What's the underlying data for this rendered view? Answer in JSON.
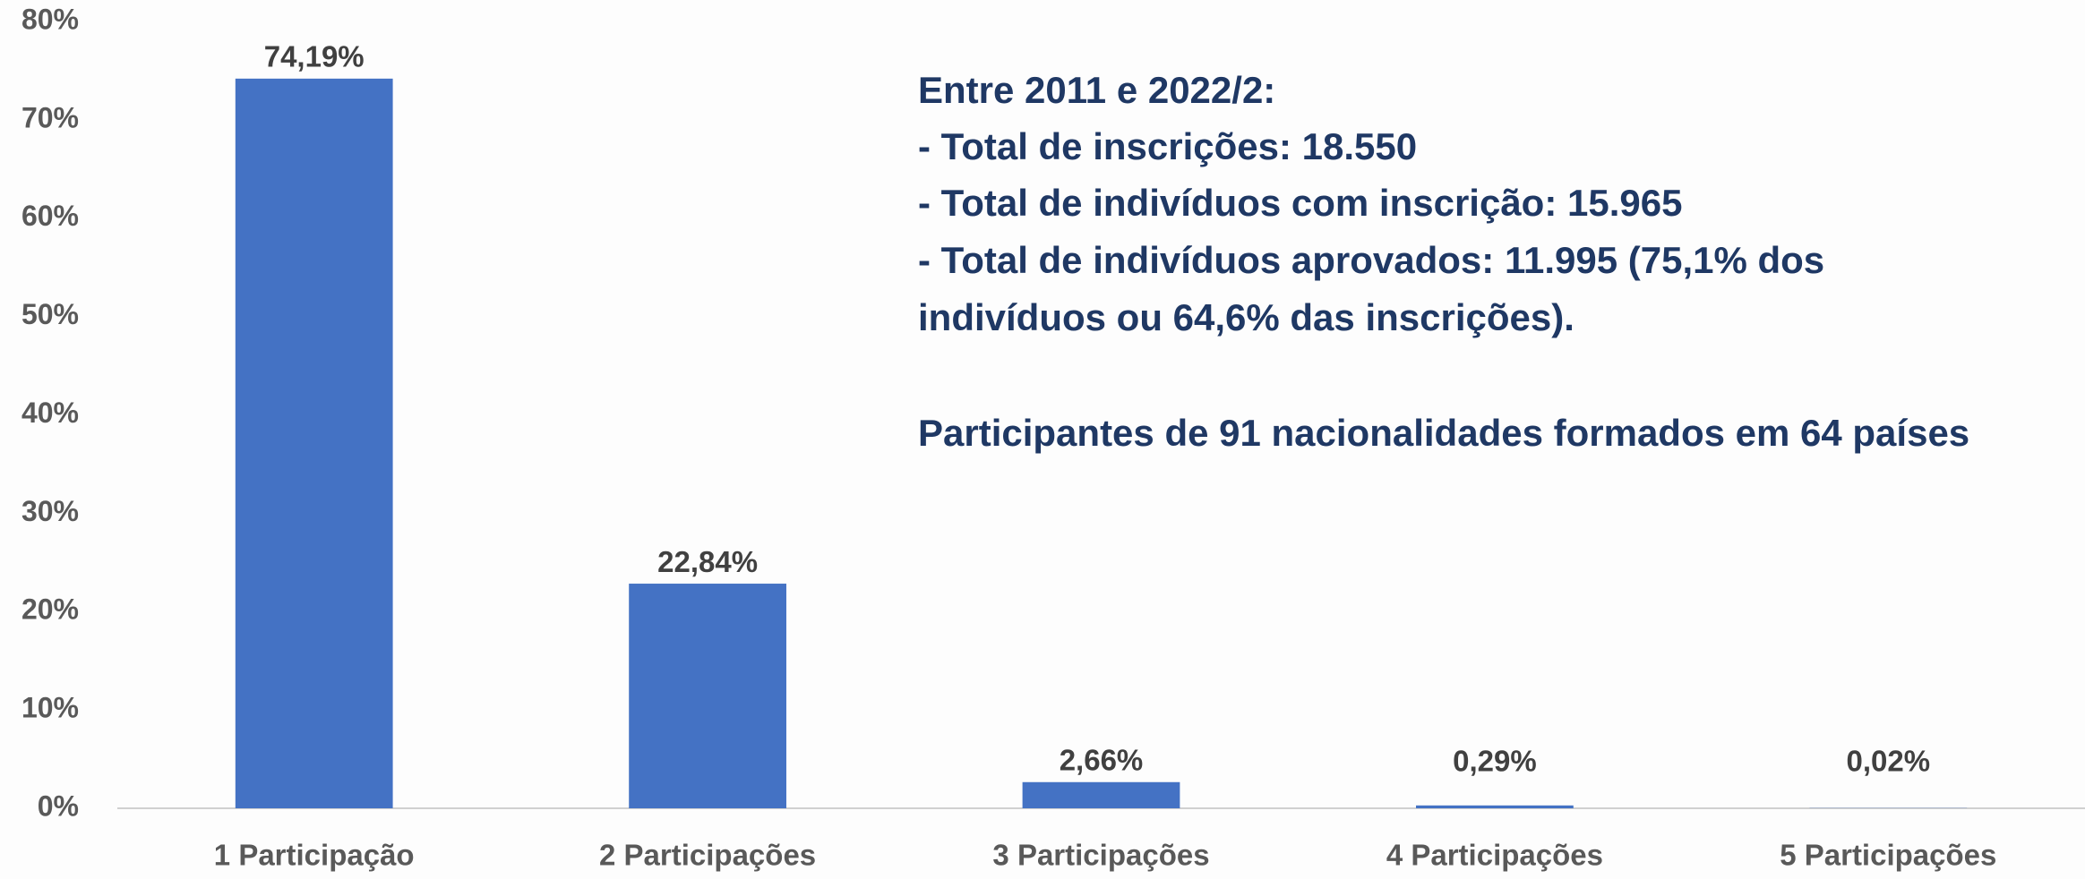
{
  "chart_data": {
    "type": "bar",
    "categories": [
      "1 Participação",
      "2 Participações",
      "3 Participações",
      "4 Participações",
      "5 Participações"
    ],
    "values": [
      74.19,
      22.84,
      2.66,
      0.29,
      0.02
    ],
    "value_labels": [
      "74,19%",
      "22,84%",
      "2,66%",
      "0,29%",
      "0,02%"
    ],
    "color": "#4472c4",
    "ylim": [
      0,
      80
    ],
    "yticks": [
      {
        "value": 0,
        "label": "0%"
      },
      {
        "value": 10,
        "label": "10%"
      },
      {
        "value": 20,
        "label": "20%"
      },
      {
        "value": 30,
        "label": "30%"
      },
      {
        "value": 40,
        "label": "40%"
      },
      {
        "value": 50,
        "label": "50%"
      },
      {
        "value": 60,
        "label": "60%"
      },
      {
        "value": 70,
        "label": "70%"
      },
      {
        "value": 80,
        "label": "80%"
      }
    ],
    "grid": false,
    "annotations": [
      "Entre 2011 e 2022/2:",
      "- Total de inscrições: 18.550",
      "- Total de indivíduos com inscrição: 15.965",
      "- Total de indivíduos aprovados: 11.995 (75,1% dos",
      "indivíduos ou 64,6% das inscrições).",
      "Participantes de 91 nacionalidades formados em 64 países"
    ]
  }
}
